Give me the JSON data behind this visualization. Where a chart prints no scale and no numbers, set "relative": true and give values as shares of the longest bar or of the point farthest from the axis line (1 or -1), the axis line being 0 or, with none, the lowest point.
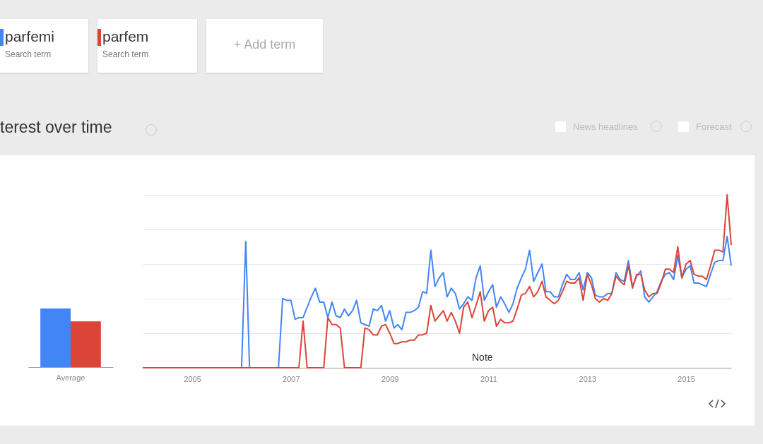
{
  "chart_data": [
    {
      "type": "bar",
      "title": "terest over time",
      "categories": [
        "Average"
      ],
      "relative": true,
      "series": [
        {
          "color": "#4285f4",
          "values": [
            1
          ]
        },
        {
          "color": "#db4437",
          "values": [
            0.78
          ]
        }
      ]
    },
    {
      "type": "line",
      "relative": true,
      "grid": "y",
      "legend": "top left",
      "annotations": [
        "Note",
        "Search term",
        "+ Add term",
        "News headlines",
        "Forecast"
      ],
      "xlim": [
        "2004-01",
        "2015-12"
      ],
      "xticks": [
        {
          "value": "2005-01",
          "label": "2005"
        },
        {
          "value": "2007-01",
          "label": "2007"
        },
        {
          "value": "2009-01",
          "label": "2009"
        },
        {
          "value": "2011-01",
          "label": "2011"
        },
        {
          "value": "2013-01",
          "label": "2013"
        },
        {
          "value": "2015-01",
          "label": "2015"
        }
      ],
      "x": [
        "2004-01",
        "2004-02",
        "2004-03",
        "2004-04",
        "2004-05",
        "2004-06",
        "2004-07",
        "2004-08",
        "2004-09",
        "2004-10",
        "2004-11",
        "2004-12",
        "2005-01",
        "2005-02",
        "2005-03",
        "2005-04",
        "2005-05",
        "2005-06",
        "2005-07",
        "2005-08",
        "2005-09",
        "2005-10",
        "2005-11",
        "2005-12",
        "2006-01",
        "2006-02",
        "2006-03",
        "2006-04",
        "2006-05",
        "2006-06",
        "2006-07",
        "2006-08",
        "2006-09",
        "2006-10",
        "2006-11",
        "2006-12",
        "2007-01",
        "2007-02",
        "2007-03",
        "2007-04",
        "2007-05",
        "2007-06",
        "2007-07",
        "2007-08",
        "2007-09",
        "2007-10",
        "2007-11",
        "2007-12",
        "2008-01",
        "2008-02",
        "2008-03",
        "2008-04",
        "2008-05",
        "2008-06",
        "2008-07",
        "2008-08",
        "2008-09",
        "2008-10",
        "2008-11",
        "2008-12",
        "2009-01",
        "2009-02",
        "2009-03",
        "2009-04",
        "2009-05",
        "2009-06",
        "2009-07",
        "2009-08",
        "2009-09",
        "2009-10",
        "2009-11",
        "2009-12",
        "2010-01",
        "2010-02",
        "2010-03",
        "2010-04",
        "2010-05",
        "2010-06",
        "2010-07",
        "2010-08",
        "2010-09",
        "2010-10",
        "2010-11",
        "2010-12",
        "2011-01",
        "2011-02",
        "2011-03",
        "2011-04",
        "2011-05",
        "2011-06",
        "2011-07",
        "2011-08",
        "2011-09",
        "2011-10",
        "2011-11",
        "2011-12",
        "2012-01",
        "2012-02",
        "2012-03",
        "2012-04",
        "2012-05",
        "2012-06",
        "2012-07",
        "2012-08",
        "2012-09",
        "2012-10",
        "2012-11",
        "2012-12",
        "2013-01",
        "2013-02",
        "2013-03",
        "2013-04",
        "2013-05",
        "2013-06",
        "2013-07",
        "2013-08",
        "2013-09",
        "2013-10",
        "2013-11",
        "2013-12",
        "2014-01",
        "2014-02",
        "2014-03",
        "2014-04",
        "2014-05",
        "2014-06",
        "2014-07",
        "2014-08",
        "2014-09",
        "2014-10",
        "2014-11",
        "2014-12",
        "2015-01",
        "2015-02",
        "2015-03",
        "2015-04",
        "2015-05",
        "2015-06",
        "2015-07",
        "2015-08",
        "2015-09",
        "2015-10",
        "2015-11",
        "2015-12"
      ],
      "series": [
        {
          "name": "parfemi",
          "color": "#4285f4",
          "values": [
            null,
            null,
            null,
            null,
            null,
            null,
            null,
            null,
            null,
            null,
            null,
            null,
            null,
            null,
            null,
            null,
            null,
            null,
            null,
            null,
            null,
            null,
            null,
            null,
            0,
            0.73,
            0,
            null,
            null,
            null,
            null,
            null,
            null,
            0,
            0.4,
            0.39,
            0.39,
            0.28,
            0.29,
            0.29,
            0.35,
            0.41,
            0.46,
            0.38,
            0.38,
            0.29,
            0.38,
            0.3,
            0.29,
            0.34,
            0.3,
            0.33,
            0.39,
            0.26,
            0.25,
            0.24,
            0.34,
            0.33,
            0.36,
            0.27,
            0.33,
            0.23,
            0.25,
            0.22,
            0.32,
            0.32,
            0.33,
            0.35,
            0.44,
            0.43,
            0.68,
            0.47,
            0.52,
            0.55,
            0.41,
            0.46,
            0.43,
            0.34,
            0.37,
            0.41,
            0.39,
            0.52,
            0.59,
            0.39,
            0.44,
            0.48,
            0.35,
            0.41,
            0.37,
            0.32,
            0.37,
            0.46,
            0.52,
            0.57,
            0.68,
            0.5,
            0.55,
            0.6,
            0.44,
            0.44,
            0.41,
            0.41,
            0.48,
            0.54,
            0.51,
            0.51,
            0.55,
            0.45,
            0.55,
            0.52,
            0.42,
            0.41,
            0.41,
            0.43,
            0.43,
            0.55,
            0.51,
            0.5,
            0.62,
            0.47,
            0.53,
            0.56,
            0.41,
            0.38,
            0.41,
            0.44,
            0.5,
            0.54,
            0.55,
            0.51,
            0.65,
            0.52,
            0.57,
            0.59,
            0.49,
            0.49,
            0.48,
            0.47,
            0.54,
            0.61,
            0.62,
            0.62,
            0.76,
            0.59
          ]
        },
        {
          "name": "parfem",
          "color": "#db4437",
          "values": [
            0,
            0,
            0,
            0,
            0,
            0,
            0,
            0,
            0,
            0,
            0,
            0,
            0,
            0,
            0,
            0,
            0,
            0,
            0,
            0,
            0,
            0,
            0,
            0,
            0,
            0,
            0,
            0,
            0,
            0,
            0,
            0,
            0,
            0,
            0,
            0,
            0,
            0,
            0,
            0.27,
            0,
            0,
            0,
            0,
            0,
            0.29,
            0.25,
            0.25,
            0.23,
            0,
            0,
            0,
            0,
            0,
            0.23,
            0.22,
            0.19,
            0.19,
            0.24,
            0.25,
            0.2,
            0.14,
            0.14,
            0.15,
            0.15,
            0.16,
            0.16,
            0.19,
            0.19,
            0.2,
            0.36,
            0.27,
            0.3,
            0.33,
            0.27,
            0.32,
            0.27,
            0.2,
            0.35,
            0.38,
            0.29,
            0.36,
            0.44,
            0.27,
            0.33,
            0.35,
            0.24,
            0.28,
            0.26,
            0.26,
            0.27,
            0.34,
            0.42,
            0.43,
            0.47,
            0.41,
            0.44,
            0.5,
            0.41,
            0.39,
            0.37,
            0.39,
            0.44,
            0.5,
            0.49,
            0.49,
            0.52,
            0.39,
            0.54,
            0.48,
            0.4,
            0.38,
            0.4,
            0.39,
            0.43,
            0.53,
            0.5,
            0.48,
            0.59,
            0.46,
            0.54,
            0.54,
            0.45,
            0.41,
            0.43,
            0.43,
            0.49,
            0.57,
            0.57,
            0.55,
            0.7,
            0.52,
            0.6,
            0.62,
            0.54,
            0.53,
            0.53,
            0.51,
            0.59,
            0.68,
            0.68,
            0.67,
            1.0,
            0.71
          ]
        }
      ]
    }
  ]
}
